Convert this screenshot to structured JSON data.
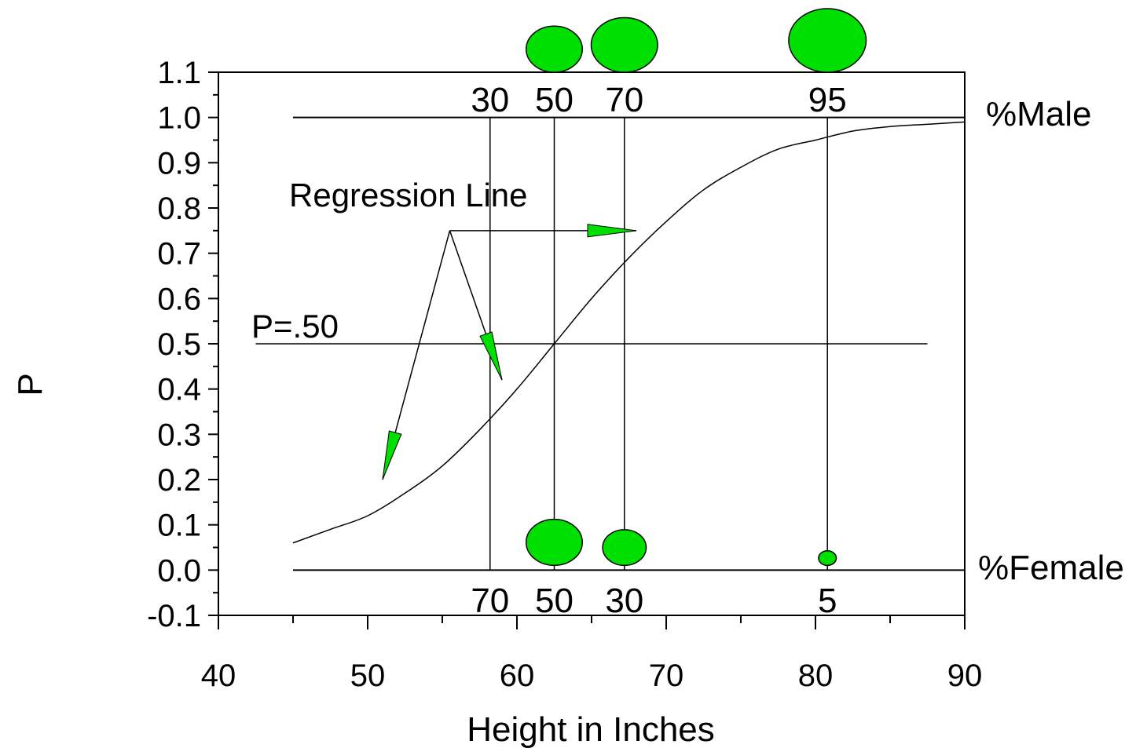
{
  "chart_data": {
    "type": "line",
    "title": "",
    "xlabel": "Height in Inches",
    "ylabel": "P",
    "xlim": [
      40,
      90
    ],
    "ylim": [
      -0.1,
      1.1
    ],
    "x_ticks": [
      40,
      50,
      60,
      70,
      80,
      90
    ],
    "x_tick_labels": [
      "40",
      "50",
      "60",
      "70",
      "80",
      "90"
    ],
    "y_ticks": [
      -0.1,
      0.0,
      0.1,
      0.2,
      0.3,
      0.4,
      0.5,
      0.6,
      0.7,
      0.8,
      0.9,
      1.0,
      1.1
    ],
    "y_tick_labels": [
      "-0.1",
      "0.0",
      "0.1",
      "0.2",
      "0.3",
      "0.4",
      "0.5",
      "0.6",
      "0.7",
      "0.8",
      "0.9",
      "1.0",
      "1.1"
    ],
    "grid": false,
    "series": [
      {
        "x": [
          45,
          47.5,
          50,
          52.5,
          55,
          57.5,
          60,
          62.5,
          65,
          67.5,
          70,
          72.5,
          75,
          77.5,
          80,
          82.5,
          85,
          87.5,
          90
        ],
        "y": [
          0.06,
          0.09,
          0.12,
          0.17,
          0.23,
          0.31,
          0.4,
          0.5,
          0.6,
          0.69,
          0.77,
          0.84,
          0.89,
          0.93,
          0.95,
          0.97,
          0.98,
          0.985,
          0.99
        ],
        "color": "#000000"
      }
    ],
    "reference_lines": {
      "male": {
        "y": 1.0,
        "label": "%Male",
        "x_range": [
          45,
          90
        ]
      },
      "female": {
        "y": 0.0,
        "label": "%Female",
        "x_range": [
          45,
          90
        ]
      },
      "p50": {
        "y": 0.5,
        "label": "P=.50",
        "x_range": [
          42.5,
          87.5
        ]
      }
    },
    "male_percentages": [
      {
        "x": 58.2,
        "label": "30",
        "bubble": 0
      },
      {
        "x": 62.5,
        "label": "50",
        "bubble": 50
      },
      {
        "x": 67.2,
        "label": "70",
        "bubble": 70
      },
      {
        "x": 80.8,
        "label": "95",
        "bubble": 95
      }
    ],
    "female_percentages": [
      {
        "x": 58.2,
        "label": "70",
        "bubble": 0
      },
      {
        "x": 62.5,
        "label": "50",
        "bubble": 50
      },
      {
        "x": 67.2,
        "label": "30",
        "bubble": 30
      },
      {
        "x": 80.8,
        "label": "5",
        "bubble": 5
      }
    ],
    "annotation": {
      "text": "Regression Line",
      "origin": [
        55.5,
        0.75
      ],
      "targets": [
        [
          51,
          0.2
        ],
        [
          59,
          0.42
        ],
        [
          68,
          0.75
        ]
      ]
    },
    "bubble_color": "#00e000"
  }
}
